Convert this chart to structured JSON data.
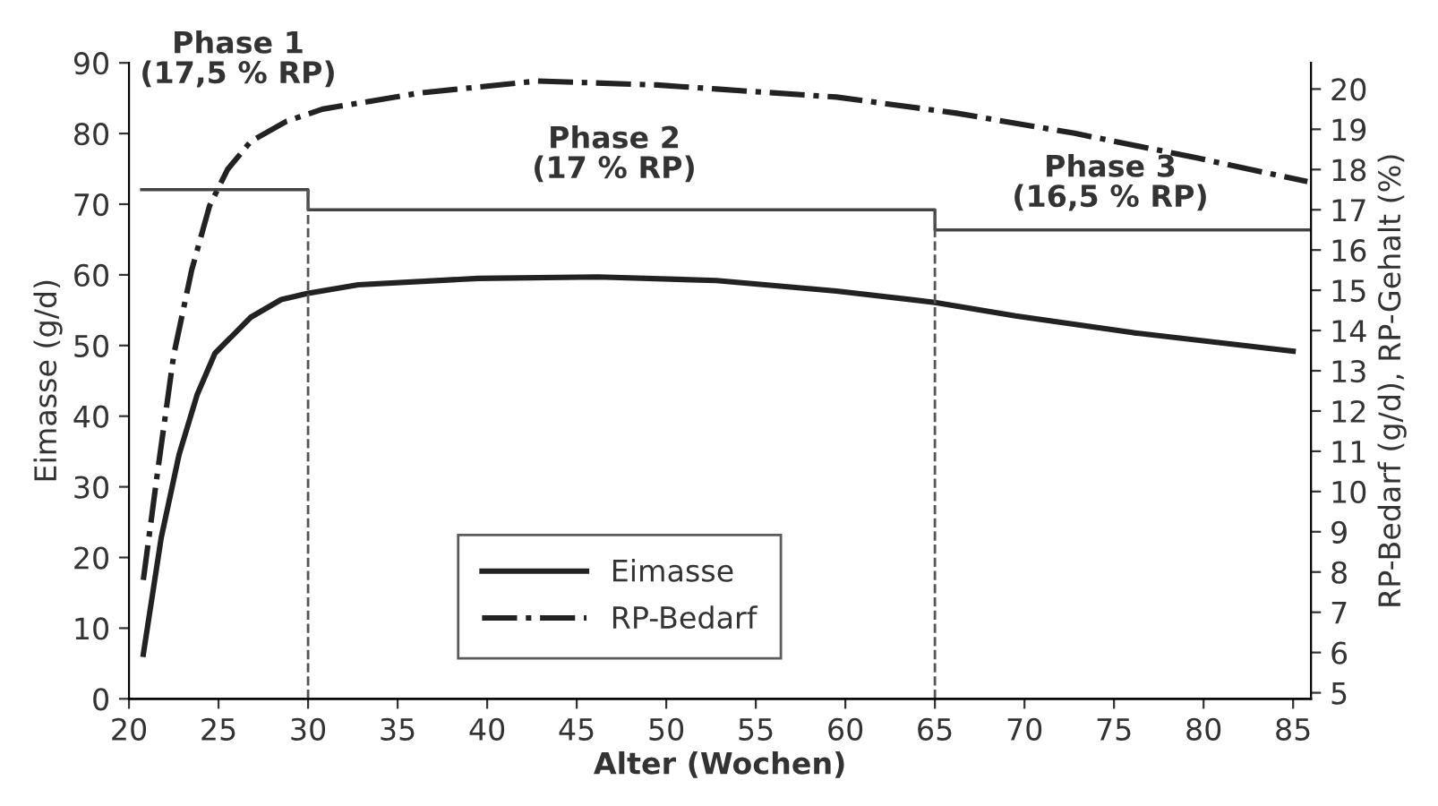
{
  "chart_data": {
    "type": "line",
    "xlabel": "Alter (Wochen)",
    "ylabel": "Eimasse (g/d)",
    "y2label": "RP-Bedarf (g/d), RP-Gehalt (%)",
    "series": [
      {
        "name": "Eimasse",
        "color": "#222222",
        "line_style": "solid",
        "x": [
          20.8,
          21.8,
          22.8,
          23.8,
          24.8,
          26.8,
          28.5,
          30,
          32.8,
          39.5,
          46.2,
          52.8,
          59.5,
          65,
          69.5,
          76.1,
          85
        ],
        "values": [
          6.3,
          22.8,
          34.6,
          43,
          48.9,
          54,
          56.5,
          57.4,
          58.6,
          59.5,
          59.7,
          59.2,
          57.7,
          56.1,
          54.2,
          51.8,
          49.2
        ]
      },
      {
        "name": "RP-Bedarf",
        "color": "#222222",
        "line_style": "dashdot",
        "axis": "y2",
        "x": [
          20.8,
          21.6,
          22.5,
          23.5,
          24.5,
          25.5,
          26.8,
          28.8,
          30.8,
          36.2,
          42.8,
          49.5,
          52.8,
          59.5,
          66.2,
          72.8,
          79.5,
          85.8
        ],
        "values": [
          7.8,
          10.5,
          13.4,
          15.5,
          17.1,
          18.0,
          18.7,
          19.2,
          19.5,
          19.9,
          20.2,
          20.1,
          20.0,
          19.8,
          19.4,
          18.9,
          18.3,
          17.7
        ]
      },
      {
        "type": "step",
        "color": "#444444",
        "line_style": "solid",
        "axis": "y2",
        "x": [
          20.7,
          30,
          65,
          86
        ],
        "values": [
          17.5,
          17,
          16.5,
          16.5
        ]
      }
    ],
    "xlim": [
      20,
      86
    ],
    "xticks": [
      20,
      25,
      30,
      35,
      40,
      45,
      50,
      55,
      60,
      65,
      70,
      75,
      80,
      85
    ],
    "ylim": [
      0,
      90
    ],
    "yticks": [
      0,
      10,
      20,
      30,
      40,
      50,
      60,
      70,
      80,
      90
    ],
    "y2lim": [
      4.85,
      20.65
    ],
    "y2ticks": [
      5,
      6,
      7,
      8,
      9,
      10,
      11,
      12,
      13,
      14,
      15,
      16,
      17,
      18,
      19,
      20
    ],
    "ref_lines": [
      {
        "axis": "x",
        "value": 30,
        "line_style": "dashed",
        "color": "#555555"
      },
      {
        "axis": "x",
        "value": 65,
        "line_style": "dashed",
        "color": "#555555"
      }
    ],
    "annotations": [
      "Phase 1\n(17,5 % RP)",
      "Phase 2\n(17 % RP)",
      "Phase 3\n(16,5 % RP)"
    ],
    "legend": "bottom",
    "grid": false
  }
}
